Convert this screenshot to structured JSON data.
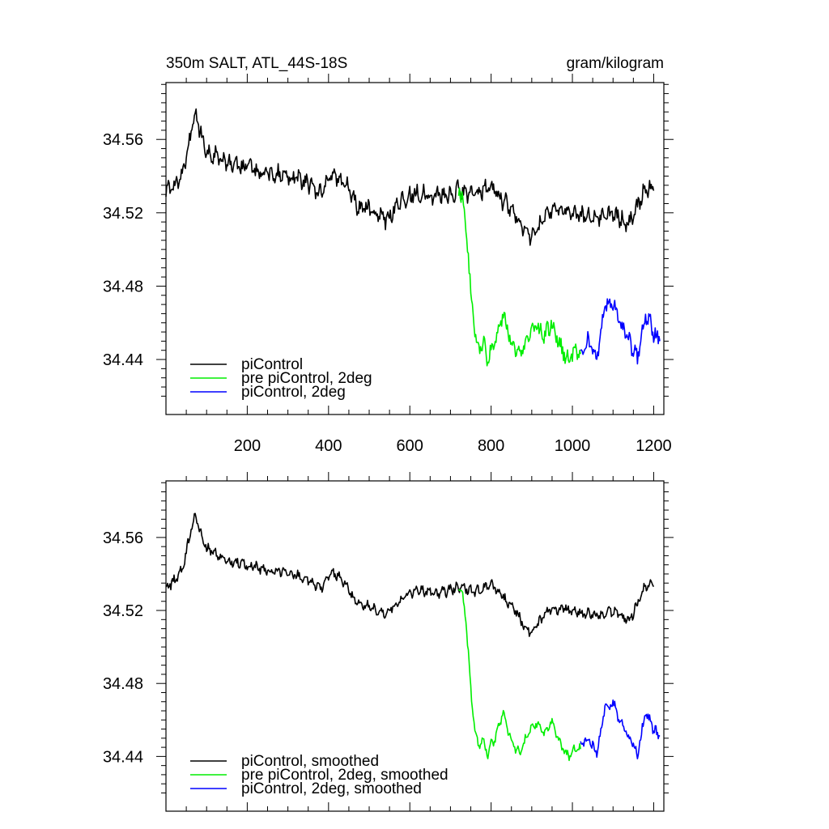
{
  "chart_data": [
    {
      "type": "line",
      "title_left": "350m SALT, ATL_44S-18S",
      "title_right": "gram/kilogram",
      "xlabel": "",
      "ylabel": "",
      "xlim": [
        0,
        1225
      ],
      "ylim": [
        34.41,
        34.591
      ],
      "x_ticks": [
        200,
        400,
        600,
        800,
        1000,
        1200
      ],
      "x_tick_labels": [
        "200",
        "400",
        "600",
        "800",
        "1000",
        "1200"
      ],
      "y_ticks": [
        34.44,
        34.48,
        34.52,
        34.56
      ],
      "y_tick_labels": [
        "34.44",
        "34.48",
        "34.52",
        "34.56"
      ],
      "legend_position": "bottom-left",
      "series": [
        {
          "name": "piControl",
          "color": "#000000",
          "x": [
            0,
            20,
            40,
            60,
            70,
            80,
            100,
            130,
            160,
            200,
            250,
            300,
            350,
            380,
            410,
            440,
            470,
            500,
            540,
            580,
            620,
            660,
            700,
            720,
            760,
            800,
            820,
            860,
            880,
            900,
            940,
            980,
            1020,
            1060,
            1100,
            1140,
            1160,
            1180,
            1200
          ],
          "y": [
            34.531,
            34.535,
            34.541,
            34.562,
            34.574,
            34.567,
            34.553,
            34.55,
            34.546,
            34.545,
            34.541,
            34.541,
            34.536,
            34.531,
            34.541,
            34.536,
            34.524,
            34.522,
            34.516,
            34.527,
            34.531,
            34.529,
            34.53,
            34.533,
            34.529,
            34.535,
            34.529,
            34.519,
            34.512,
            34.506,
            34.52,
            34.521,
            34.519,
            34.517,
            34.52,
            34.514,
            34.524,
            34.534,
            34.532
          ]
        },
        {
          "name": "pre piControl, 2deg",
          "color": "#00ee00",
          "x": [
            720,
            730,
            740,
            750,
            760,
            770,
            780,
            790,
            800,
            810,
            830,
            850,
            870,
            890,
            910,
            930,
            950,
            970,
            990,
            1010,
            1020
          ],
          "y": [
            34.532,
            34.528,
            34.51,
            34.476,
            34.455,
            34.444,
            34.45,
            34.441,
            34.446,
            34.45,
            34.466,
            34.448,
            34.441,
            34.452,
            34.458,
            34.452,
            34.46,
            34.447,
            34.44,
            34.445,
            34.443
          ]
        },
        {
          "name": "piControl, 2deg",
          "color": "#0000ff",
          "x": [
            1020,
            1040,
            1060,
            1080,
            1100,
            1120,
            1140,
            1160,
            1180,
            1200,
            1215
          ],
          "y": [
            34.445,
            34.45,
            34.44,
            34.468,
            34.47,
            34.458,
            34.45,
            34.44,
            34.465,
            34.455,
            34.45
          ]
        }
      ]
    },
    {
      "type": "line",
      "xlabel": "",
      "ylabel": "",
      "xlim": [
        0,
        1225
      ],
      "ylim": [
        34.41,
        34.591
      ],
      "y_ticks": [
        34.44,
        34.48,
        34.52,
        34.56
      ],
      "y_tick_labels": [
        "34.44",
        "34.48",
        "34.52",
        "34.56"
      ],
      "legend_position": "bottom-left",
      "series": [
        {
          "name": "piControl, smoothed",
          "color": "#000000",
          "x": [
            0,
            20,
            40,
            60,
            70,
            80,
            100,
            130,
            160,
            200,
            250,
            300,
            350,
            380,
            410,
            440,
            470,
            500,
            540,
            580,
            620,
            660,
            700,
            720,
            760,
            800,
            820,
            860,
            880,
            900,
            940,
            980,
            1020,
            1060,
            1100,
            1140,
            1160,
            1180,
            1200
          ],
          "y": [
            34.532,
            34.536,
            34.542,
            34.562,
            34.572,
            34.566,
            34.554,
            34.55,
            34.547,
            34.545,
            34.542,
            34.541,
            34.537,
            34.532,
            34.541,
            34.535,
            34.524,
            34.522,
            34.518,
            34.527,
            34.531,
            34.529,
            34.531,
            34.533,
            34.53,
            34.535,
            34.529,
            34.52,
            34.512,
            34.508,
            34.52,
            34.521,
            34.519,
            34.517,
            34.52,
            34.514,
            34.524,
            34.534,
            34.533
          ]
        },
        {
          "name": "pre piControl, 2deg, smoothed",
          "color": "#00ee00",
          "x": [
            720,
            730,
            740,
            750,
            760,
            770,
            780,
            790,
            800,
            810,
            830,
            850,
            870,
            890,
            910,
            930,
            950,
            970,
            990,
            1010,
            1020
          ],
          "y": [
            34.532,
            34.528,
            34.51,
            34.476,
            34.455,
            34.445,
            34.45,
            34.441,
            34.446,
            34.45,
            34.465,
            34.448,
            34.441,
            34.452,
            34.458,
            34.452,
            34.459,
            34.447,
            34.44,
            34.445,
            34.444
          ]
        },
        {
          "name": "piControl, 2deg, smoothed",
          "color": "#0000ff",
          "x": [
            1020,
            1040,
            1060,
            1080,
            1100,
            1120,
            1140,
            1160,
            1180,
            1200,
            1215
          ],
          "y": [
            34.446,
            34.45,
            34.441,
            34.467,
            34.469,
            34.458,
            34.45,
            34.441,
            34.464,
            34.455,
            34.451
          ]
        }
      ]
    }
  ]
}
